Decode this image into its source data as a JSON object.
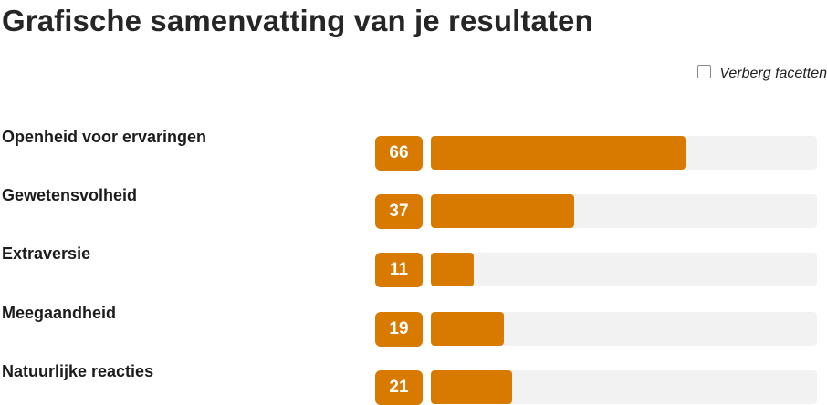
{
  "title": "Grafische samenvatting van je resultaten",
  "facet_toggle": {
    "label": "Verberg facetten",
    "checked": false
  },
  "colors": {
    "accent": "#d97a00",
    "track": "#f2f2f2"
  },
  "results": [
    {
      "label": "Openheid voor ervaringen",
      "score": "66",
      "value": 66
    },
    {
      "label": "Gewetensvolheid",
      "score": "37",
      "value": 37
    },
    {
      "label": "Extraversie",
      "score": "11",
      "value": 11
    },
    {
      "label": "Meegaandheid",
      "score": "19",
      "value": 19
    },
    {
      "label": "Natuurlijke reacties",
      "score": "21",
      "value": 21
    }
  ]
}
